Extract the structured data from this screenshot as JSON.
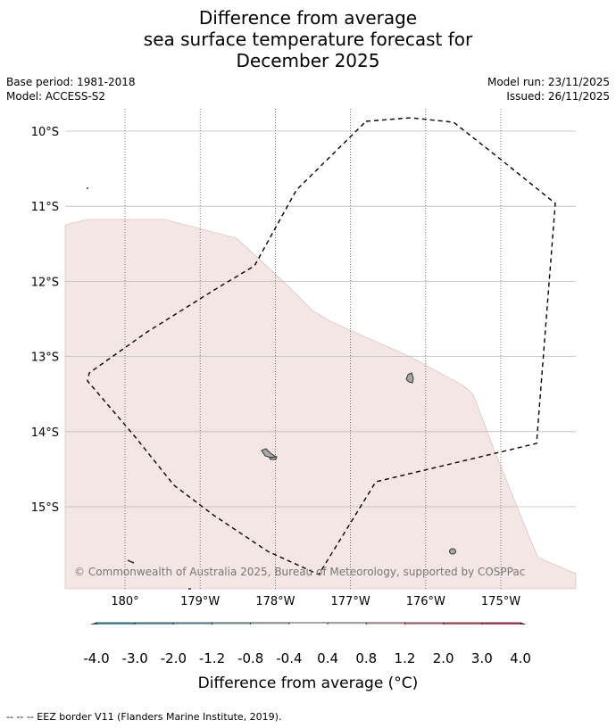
{
  "title_lines": [
    "Difference from average",
    "sea surface temperature forecast for",
    "December 2025"
  ],
  "meta": {
    "base_period": "Base period: 1981-2018",
    "model": "Model: ACCESS-S2",
    "model_run": "Model run: 23/11/2025",
    "issued": "Issued: 26/11/2025"
  },
  "map": {
    "lat_labels": [
      "10°S",
      "11°S",
      "12°S",
      "13°S",
      "14°S",
      "15°S"
    ],
    "lon_labels": [
      "180°",
      "179°W",
      "178°W",
      "177°W",
      "176°W",
      "175°W"
    ],
    "lat_values": [
      -10,
      -11,
      -12,
      -13,
      -14,
      -15
    ],
    "lon_values": [
      -180,
      -179,
      -178,
      -177,
      -176,
      -175
    ],
    "lon_range": [
      -180.8,
      -174.0
    ],
    "lat_range": [
      -16.1,
      -9.7
    ],
    "anomaly_fill_color": "#f3e6e5",
    "land_color": "#a8a8a8",
    "copyright": "© Commonwealth of Australia 2025, Bureau of Meteorology, supported by COSPPac"
  },
  "colorbar": {
    "tick_labels": [
      "-4.0",
      "-3.0",
      "-2.0",
      "-1.2",
      "-0.8",
      "-0.4",
      "0.4",
      "0.8",
      "1.2",
      "2.0",
      "3.0",
      "4.0"
    ],
    "colors": [
      "#3a7f8b",
      "#4aa2b3",
      "#6bacba",
      "#8bbcc8",
      "#a9c8cd",
      "#cfd9da",
      "#ffffff",
      "#f6e8e7",
      "#e8c6c3",
      "#d98f97",
      "#cd6873",
      "#c2485a",
      "#b0233e"
    ],
    "label": "Difference from average (°C)"
  },
  "footer": "-- -- -- EEZ border V11 (Flanders Marine Institute, 2019)."
}
